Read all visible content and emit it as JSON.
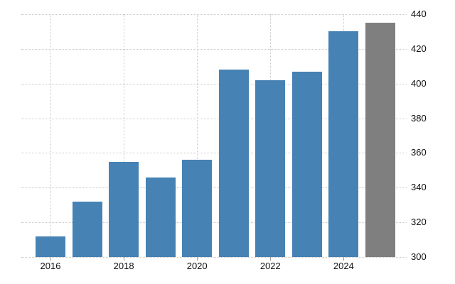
{
  "chart_data": {
    "type": "bar",
    "categories": [
      "2016",
      "2017",
      "2018",
      "2019",
      "2020",
      "2021",
      "2022",
      "2023",
      "2024",
      "2025"
    ],
    "values": [
      312,
      332,
      355,
      346,
      356,
      408,
      402,
      407,
      430,
      435
    ],
    "forecast_indices": [
      9
    ],
    "x_tick_labels": [
      "2016",
      "2018",
      "2020",
      "2022",
      "2024"
    ],
    "x_tick_category_indices": [
      0,
      2,
      4,
      6,
      8
    ],
    "y_ticks": [
      440,
      420,
      400,
      380,
      360,
      340,
      320,
      300
    ],
    "ylim": [
      300,
      440
    ],
    "title": "",
    "xlabel": "",
    "ylabel": "",
    "grid": "dotted",
    "legend": "none",
    "y_axis_side": "right",
    "colors": {
      "bar": "#4682b4",
      "forecast_bar": "#7f7f7f",
      "gridline": "#c9c9c9",
      "tick": "#9a9a9a",
      "text": "#111111",
      "background": "#ffffff"
    }
  }
}
